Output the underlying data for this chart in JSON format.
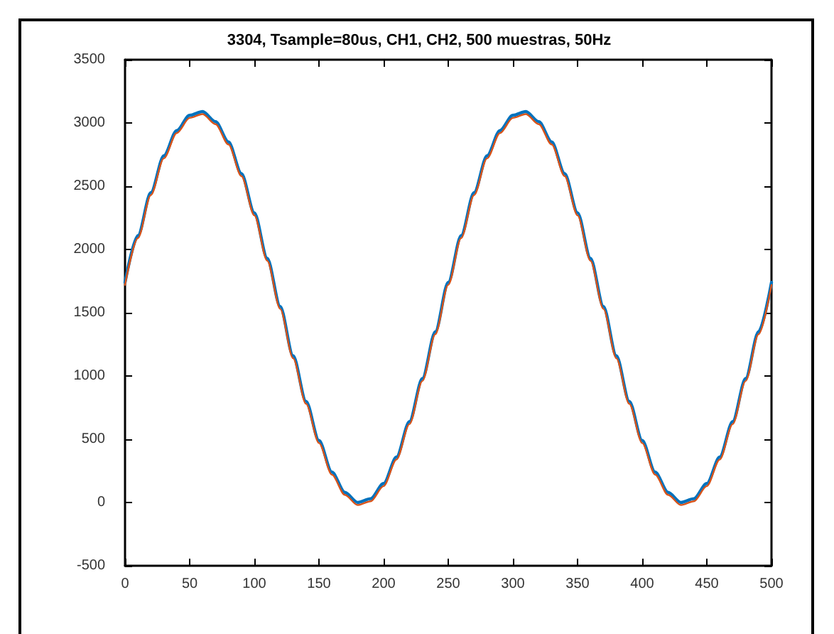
{
  "chart_data": {
    "type": "line",
    "title": "3304, Tsample=80us, CH1, CH2, 500 muestras, 50Hz",
    "x": [
      0,
      10,
      20,
      30,
      40,
      50,
      60,
      70,
      80,
      90,
      100,
      110,
      120,
      130,
      140,
      150,
      160,
      170,
      180,
      190,
      200,
      210,
      220,
      230,
      240,
      250,
      260,
      270,
      280,
      290,
      300,
      310,
      320,
      330,
      340,
      350,
      360,
      370,
      380,
      390,
      400,
      410,
      420,
      430,
      440,
      450,
      460,
      470,
      480,
      490,
      500
    ],
    "series": [
      {
        "color": "#0072bd",
        "values": [
          1740,
          2110,
          2450,
          2740,
          2940,
          3060,
          3090,
          3010,
          2850,
          2600,
          2290,
          1930,
          1550,
          1160,
          800,
          490,
          240,
          80,
          0,
          30,
          150,
          360,
          640,
          980,
          1350,
          1740,
          2110,
          2450,
          2740,
          2940,
          3060,
          3090,
          3010,
          2850,
          2600,
          2290,
          1930,
          1550,
          1160,
          800,
          490,
          240,
          80,
          0,
          30,
          150,
          360,
          640,
          980,
          1350,
          1740
        ]
      },
      {
        "color": "#d95319",
        "values": [
          1720,
          2090,
          2430,
          2720,
          2920,
          3040,
          3070,
          2990,
          2830,
          2580,
          2270,
          1910,
          1530,
          1140,
          780,
          470,
          220,
          60,
          -20,
          10,
          130,
          340,
          620,
          960,
          1330,
          1720,
          2090,
          2430,
          2720,
          2920,
          3040,
          3070,
          2990,
          2830,
          2580,
          2270,
          1910,
          1530,
          1140,
          780,
          470,
          220,
          60,
          -20,
          10,
          130,
          340,
          620,
          960,
          1330,
          1720
        ]
      }
    ],
    "xlim": [
      0,
      500
    ],
    "xticks": [
      0,
      50,
      100,
      150,
      200,
      250,
      300,
      350,
      400,
      450,
      500
    ],
    "ylim": [
      -500,
      3500
    ],
    "yticks": [
      -500,
      0,
      500,
      1000,
      1500,
      2000,
      2500,
      3000,
      3500
    ],
    "grid": false,
    "marker": "none",
    "line_style": "solid"
  }
}
